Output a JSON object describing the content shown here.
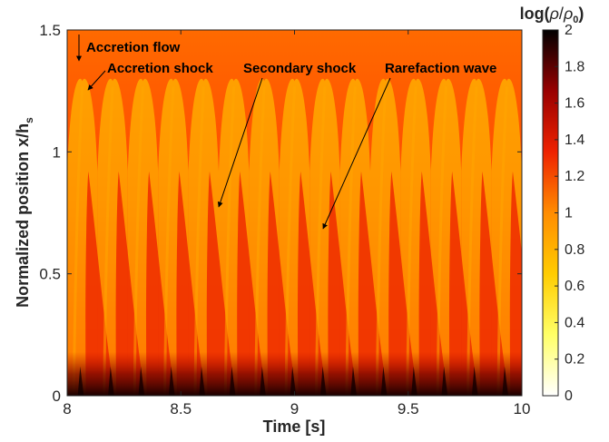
{
  "chart_data": {
    "type": "heatmap",
    "title": "",
    "xlabel": "Time [s]",
    "ylabel_main": "Normalized position  x/h",
    "ylabel_sub": "s",
    "xlim": [
      8,
      10
    ],
    "ylim": [
      0,
      1.5
    ],
    "x_ticks": [
      8,
      8.5,
      9,
      9.5,
      10
    ],
    "x_tick_labels": [
      "8",
      "8.5",
      "9",
      "9.5",
      "10"
    ],
    "y_ticks": [
      0,
      0.5,
      1,
      1.5
    ],
    "y_tick_labels": [
      "0",
      "0.5",
      "1",
      "1.5"
    ],
    "colorbar": {
      "label_prefix": "log(",
      "label_num": "ρ",
      "label_slash": "/",
      "label_den": "ρ",
      "label_den_sub": "0",
      "label_suffix": ")",
      "range": [
        0,
        2
      ],
      "ticks": [
        0,
        0.2,
        0.4,
        0.6,
        0.8,
        1,
        1.2,
        1.4,
        1.6,
        1.8,
        2
      ],
      "tick_labels": [
        "0",
        "0.2",
        "0.4",
        "0.6",
        "0.8",
        "1",
        "1.2",
        "1.4",
        "1.6",
        "1.8",
        "2"
      ],
      "colormap": "hot_reversed",
      "colors": [
        "#ffffff",
        "#ffff66",
        "#ffcc00",
        "#ff8c00",
        "#ee2200",
        "#990000",
        "#000000"
      ]
    },
    "oscillation": {
      "num_cycles": 15,
      "period_s": 0.1333,
      "shock_max_position": 1.29,
      "secondary_max_position": 0.92
    },
    "annotations": [
      {
        "text": "Accretion flow",
        "target": [
          8.06,
          1.37
        ]
      },
      {
        "text": "Accretion shock",
        "target": [
          8.1,
          1.25
        ]
      },
      {
        "text": "Secondary shock",
        "target": [
          8.66,
          0.78
        ]
      },
      {
        "text": "Rarefaction wave",
        "target": [
          9.14,
          0.69
        ]
      }
    ],
    "grid": false
  }
}
